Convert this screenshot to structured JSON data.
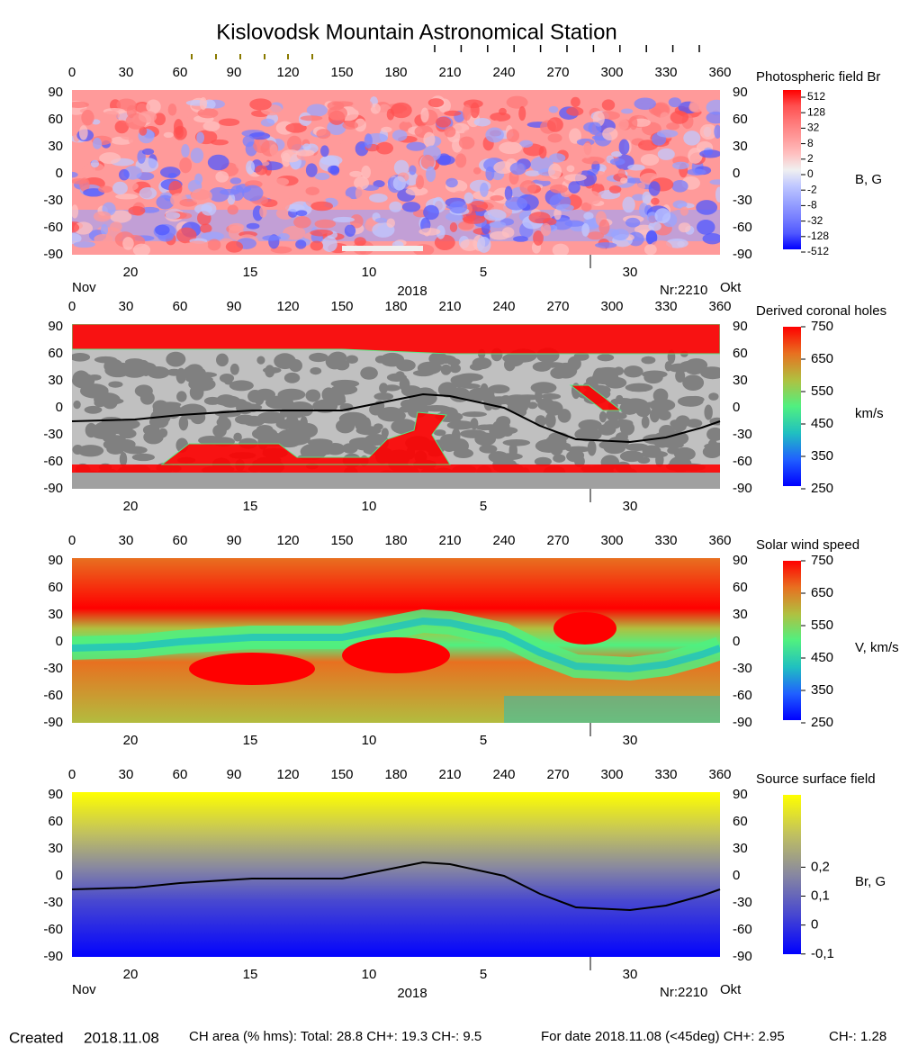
{
  "header": {
    "title": "Kislovodsk Mountain Astronomical Station"
  },
  "chart_data": [
    {
      "type": "heatmap",
      "title": "Photospheric field Br",
      "colorbar_label": "B, G",
      "xlim": [
        0,
        360
      ],
      "ylim": [
        -90,
        90
      ],
      "xticks": [
        0,
        30,
        60,
        90,
        120,
        150,
        180,
        210,
        240,
        270,
        300,
        330,
        360
      ],
      "yticks": [
        90,
        60,
        30,
        0,
        -30,
        -60,
        -90
      ],
      "date_ticks": [
        {
          "value": 32.5,
          "label": "20"
        },
        {
          "value": 99,
          "label": "15"
        },
        {
          "value": 165,
          "label": "10"
        },
        {
          "value": 228.5,
          "label": "5"
        },
        {
          "value": 310,
          "label": "30"
        }
      ],
      "cbar_ticks": [
        512,
        128,
        32,
        8,
        2,
        0,
        -2,
        -8,
        -32,
        -128,
        -512
      ],
      "colormap": [
        "#ff0000",
        "#ff5050",
        "#ff7878",
        "#ff9a9a",
        "#ffc0c0",
        "#f0f0f0",
        "#c0c8ff",
        "#9aa4ff",
        "#7880ff",
        "#5058ff",
        "#0000ff"
      ],
      "bottom_labels": {
        "month_left": "Nov",
        "year": "2018",
        "rotation": "Nr:2210",
        "month_right": "Okt"
      }
    },
    {
      "type": "heatmap",
      "title": "Derived coronal holes",
      "colorbar_label": "km/s",
      "xlim": [
        0,
        360
      ],
      "ylim": [
        -90,
        90
      ],
      "xticks": [
        0,
        30,
        60,
        90,
        120,
        150,
        180,
        210,
        240,
        270,
        300,
        330,
        360
      ],
      "yticks": [
        90,
        60,
        30,
        0,
        -30,
        -60,
        -90
      ],
      "date_ticks": [
        {
          "value": 32.5,
          "label": "20"
        },
        {
          "value": 99,
          "label": "15"
        },
        {
          "value": 165,
          "label": "10"
        },
        {
          "value": 228.5,
          "label": "5"
        },
        {
          "value": 310,
          "label": "30"
        }
      ],
      "clim": [
        250,
        750
      ],
      "cbar_ticks": [
        750,
        650,
        550,
        450,
        350,
        250
      ],
      "colormap": [
        "#ff0000",
        "#e87020",
        "#b0c040",
        "#50f080",
        "#20c0c0",
        "#2060ff",
        "#0000ff"
      ],
      "neutral_line": {
        "x": [
          0,
          35,
          60,
          100,
          150,
          195,
          210,
          240,
          260,
          280,
          310,
          330,
          350,
          360
        ],
        "y": [
          -15,
          -13,
          -8,
          -3,
          -3,
          15,
          13,
          0,
          -20,
          -35,
          -38,
          -33,
          -22,
          -15
        ]
      }
    },
    {
      "type": "heatmap",
      "title": "Solar wind speed",
      "colorbar_label": "V, km/s",
      "xlim": [
        0,
        360
      ],
      "ylim": [
        -90,
        90
      ],
      "xticks": [
        0,
        30,
        60,
        90,
        120,
        150,
        180,
        210,
        240,
        270,
        300,
        330,
        360
      ],
      "yticks": [
        90,
        60,
        30,
        0,
        -30,
        -60,
        -90
      ],
      "date_ticks": [
        {
          "value": 32.5,
          "label": "20"
        },
        {
          "value": 99,
          "label": "15"
        },
        {
          "value": 165,
          "label": "10"
        },
        {
          "value": 228.5,
          "label": "5"
        },
        {
          "value": 310,
          "label": "30"
        }
      ],
      "clim": [
        250,
        750
      ],
      "cbar_ticks": [
        750,
        650,
        550,
        450,
        350,
        250
      ],
      "colormap": [
        "#ff0000",
        "#e87020",
        "#b0c040",
        "#50f080",
        "#20c0c0",
        "#2060ff",
        "#0000ff"
      ]
    },
    {
      "type": "heatmap",
      "title": "Source surface field",
      "colorbar_label": "Br, G",
      "xlim": [
        0,
        360
      ],
      "ylim": [
        -90,
        90
      ],
      "xticks": [
        0,
        30,
        60,
        90,
        120,
        150,
        180,
        210,
        240,
        270,
        300,
        330,
        360
      ],
      "yticks": [
        90,
        60,
        30,
        0,
        -30,
        -60,
        -90
      ],
      "date_ticks": [
        {
          "value": 32.5,
          "label": "20"
        },
        {
          "value": 99,
          "label": "15"
        },
        {
          "value": 165,
          "label": "10"
        },
        {
          "value": 228.5,
          "label": "5"
        },
        {
          "value": 310,
          "label": "30"
        }
      ],
      "clim": [
        -0.11,
        0.45
      ],
      "cbar_ticks": [
        {
          "value": 0.2,
          "label": "0,2"
        },
        {
          "value": 0.1,
          "label": "0,1"
        },
        0,
        {
          "value": -0.1,
          "label": "-0,1"
        }
      ],
      "colormap": [
        "#ffff00",
        "#c0c060",
        "#8888a0",
        "#4848d0",
        "#0000ff"
      ],
      "neutral_line": {
        "x": [
          0,
          35,
          60,
          100,
          150,
          195,
          210,
          240,
          260,
          280,
          310,
          330,
          350,
          360
        ],
        "y": [
          -15,
          -13,
          -8,
          -3,
          -3,
          15,
          13,
          0,
          -20,
          -35,
          -38,
          -33,
          -22,
          -15
        ]
      },
      "bottom_labels": {
        "month_left": "Nov",
        "year": "2018",
        "rotation": "Nr:2210",
        "month_right": "Okt"
      }
    }
  ],
  "footer": {
    "created_label": "Created",
    "created_date": "2018.11.08",
    "ch_area": "CH area (% hms): Total: 28.8 CH+: 19.3 CH-: 9.5",
    "for_date": "For date 2018.11.08 (<45deg) CH+: 2.95",
    "ch_minus": "CH-: 1.28"
  }
}
